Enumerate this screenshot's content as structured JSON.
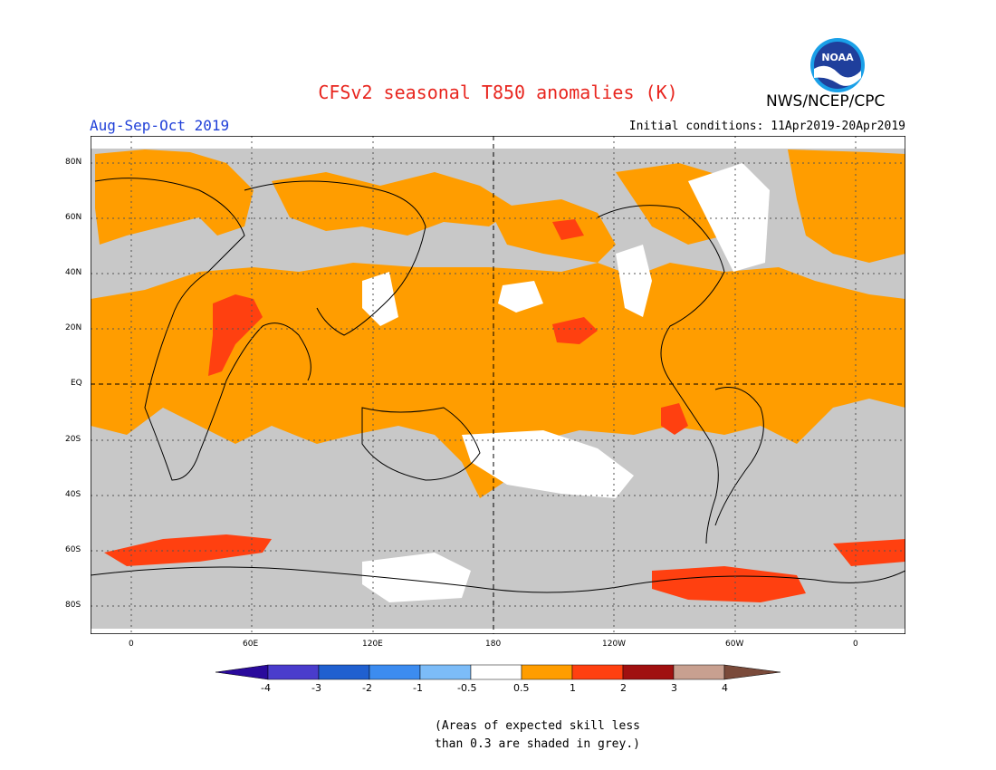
{
  "header": {
    "title": "CFSv2 seasonal T850 anomalies (K)",
    "season": "Aug-Sep-Oct 2019",
    "initial_conditions": "Initial conditions: 11Apr2019-20Apr2019",
    "org": "NWS/NCEP/CPC",
    "logo_text": "NOAA"
  },
  "map": {
    "lat_labels": [
      "80N",
      "60N",
      "40N",
      "20N",
      "EQ",
      "20S",
      "40S",
      "60S",
      "80S"
    ],
    "lon_labels": [
      "0",
      "60E",
      "120E",
      "180",
      "120W",
      "60W",
      "0"
    ],
    "colors": {
      "grey": "#c8c8c8",
      "white": "#ffffff",
      "orange": "#ff9d00",
      "red_orange": "#ff4010",
      "red": "#ff2a00",
      "land_line": "#000000"
    }
  },
  "legend": {
    "labels": [
      "-4",
      "-3",
      "-2",
      "-1",
      "-0.5",
      "0.5",
      "1",
      "2",
      "3",
      "4"
    ],
    "colors": [
      "#2a0a9c",
      "#4a3ccc",
      "#2060d0",
      "#3c8cf0",
      "#7cbcf8",
      "#ffffff",
      "#ff9d00",
      "#ff4010",
      "#a01010",
      "#c8a090",
      "#7a4a3a"
    ]
  },
  "footnote": {
    "line1": "(Areas of expected skill less",
    "line2": "than 0.3 are shaded in grey.)"
  }
}
